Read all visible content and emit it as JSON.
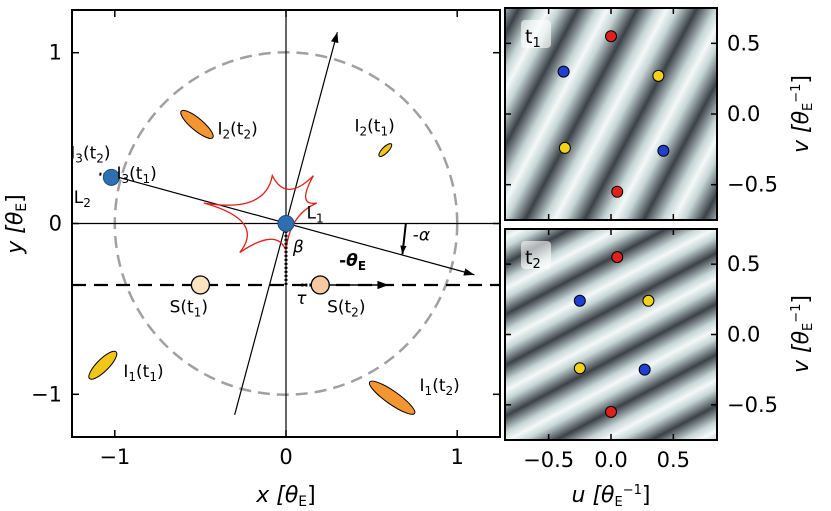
{
  "chart_data": [
    {
      "type": "scatter",
      "title": "",
      "xlabel": "x [θ_E]",
      "ylabel": "y [θ_E]",
      "xlim": [
        -1.25,
        1.25
      ],
      "ylim": [
        -1.25,
        1.25
      ],
      "xticks": [
        {
          "value": -1,
          "label": "−1"
        },
        {
          "value": 0,
          "label": "0"
        },
        {
          "value": 1,
          "label": "1"
        }
      ],
      "yticks": [
        {
          "value": -1,
          "label": "−1"
        },
        {
          "value": 0,
          "label": "0"
        },
        {
          "value": 1,
          "label": "1"
        }
      ],
      "einstein_ring": {
        "radius": 1.0
      },
      "source_track_y": -0.36,
      "lens_axis": {
        "from": [
          -1.05,
          0.29
        ],
        "to": [
          1.1,
          -0.3
        ],
        "label": "-α"
      },
      "perp_axis": {
        "from": [
          -0.3,
          -1.12
        ],
        "to": [
          0.3,
          1.12
        ]
      },
      "theta_E_arrow": {
        "from": [
          0.2,
          -0.36
        ],
        "to": [
          0.6,
          -0.36
        ],
        "label": "-θ_E"
      },
      "tau_label": "τ",
      "beta_label": "β",
      "x_label_prefix": "x [θ",
      "x_label_sub": "E",
      "x_label_suffix": "]",
      "y_label_prefix": "y [θ",
      "y_label_sub": "E",
      "y_label_suffix": "]",
      "lenses": [
        {
          "name": "L1",
          "label": "L",
          "sub": "1",
          "x": 0.0,
          "y": 0.0,
          "color": "#2f6fb0"
        },
        {
          "name": "L2",
          "label": "L",
          "sub": "2",
          "x": -1.02,
          "y": 0.27,
          "color": "#2f6fb0"
        }
      ],
      "sources": [
        {
          "name": "S(t1)",
          "label": "S(t",
          "sub": "1",
          "suffix": ")",
          "x": -0.5,
          "y": -0.36,
          "color": "#fbe3c0"
        },
        {
          "name": "S(t2)",
          "label": "S(t",
          "sub": "2",
          "suffix": ")",
          "x": 0.2,
          "y": -0.36,
          "color": "#f7c9a2"
        }
      ],
      "images": [
        {
          "name": "I1(t1)",
          "label": "I",
          "sub1": "1",
          "mid": "(t",
          "sub2": "1",
          "x": -1.07,
          "y": -0.83,
          "color": "#f2c516",
          "rx": 0.11,
          "ry": 0.035,
          "angle": 45
        },
        {
          "name": "I1(t2)",
          "label": "I",
          "sub1": "1",
          "mid": "(t",
          "sub2": "2",
          "x": 0.62,
          "y": -1.02,
          "color": "#f39632",
          "rx": 0.16,
          "ry": 0.038,
          "angle": -35
        },
        {
          "name": "I2(t1)",
          "label": "I",
          "sub1": "2",
          "mid": "(t",
          "sub2": "1",
          "x": 0.58,
          "y": 0.43,
          "color": "#f2c516",
          "rx": 0.05,
          "ry": 0.018,
          "angle": 45
        },
        {
          "name": "I2(t2)",
          "label": "I",
          "sub1": "2",
          "mid": "(t",
          "sub2": "2",
          "x": -0.52,
          "y": 0.58,
          "color": "#f39632",
          "rx": 0.12,
          "ry": 0.035,
          "angle": -40
        },
        {
          "name": "I3(t1)",
          "label": "I",
          "sub1": "3",
          "mid": "(t",
          "sub2": "1",
          "x": -1.0,
          "y": 0.27,
          "color": "#f2c516",
          "rx": 0.0,
          "ry": 0.0,
          "angle": 0
        },
        {
          "name": "I3(t2)",
          "label": "I",
          "sub1": "3",
          "mid": "(t",
          "sub2": "2",
          "x": -1.05,
          "y": 0.29,
          "color": "#f39632",
          "rx": 0.0,
          "ry": 0.0,
          "angle": 0
        }
      ]
    },
    {
      "type": "heatmap",
      "panel_tag": "t",
      "panel_tag_sub": "1",
      "xlabel": "u [θ_E^−1]",
      "ylabel": "v [θ_E^−1]",
      "xlim": [
        -0.85,
        0.85
      ],
      "ylim": [
        -0.75,
        0.75
      ],
      "xticks": [
        {
          "value": -0.5,
          "label": "−0.5"
        },
        {
          "value": 0,
          "label": "0.0"
        },
        {
          "value": 0.5,
          "label": "0.5"
        }
      ],
      "yticks": [
        {
          "value": 0.5,
          "label": "0.5"
        },
        {
          "value": 0,
          "label": "0.0"
        },
        {
          "value": -0.5,
          "label": "−0.5"
        }
      ],
      "fringe_angle": 28,
      "fringe_period": 0.42,
      "points": [
        {
          "u": 0.0,
          "v": 0.55,
          "color": "#e0201c"
        },
        {
          "u": 0.05,
          "v": -0.55,
          "color": "#e0201c"
        },
        {
          "u": -0.38,
          "v": 0.3,
          "color": "#1e3fd0"
        },
        {
          "u": 0.42,
          "v": -0.26,
          "color": "#1e3fd0"
        },
        {
          "u": 0.38,
          "v": 0.27,
          "color": "#f2d21a"
        },
        {
          "u": -0.37,
          "v": -0.24,
          "color": "#f2d21a"
        }
      ]
    },
    {
      "type": "heatmap",
      "panel_tag": "t",
      "panel_tag_sub": "2",
      "xlabel": "u [θ_E^−1]",
      "ylabel": "v [θ_E^−1]",
      "xlim": [
        -0.85,
        0.85
      ],
      "ylim": [
        -0.75,
        0.75
      ],
      "xticks": [
        {
          "value": -0.5,
          "label": "−0.5"
        },
        {
          "value": 0,
          "label": "0.0"
        },
        {
          "value": 0.5,
          "label": "0.5"
        }
      ],
      "yticks": [
        {
          "value": 0.5,
          "label": "0.5"
        },
        {
          "value": 0,
          "label": "0.0"
        },
        {
          "value": -0.5,
          "label": "−0.5"
        }
      ],
      "fringe_angle": 62,
      "fringe_period": 0.36,
      "points": [
        {
          "u": 0.05,
          "v": 0.55,
          "color": "#e0201c"
        },
        {
          "u": 0.0,
          "v": -0.55,
          "color": "#e0201c"
        },
        {
          "u": -0.25,
          "v": 0.24,
          "color": "#1e3fd0"
        },
        {
          "u": 0.27,
          "v": -0.25,
          "color": "#1e3fd0"
        },
        {
          "u": 0.3,
          "v": 0.24,
          "color": "#f2d21a"
        },
        {
          "u": -0.25,
          "v": -0.24,
          "color": "#f2d21a"
        }
      ]
    }
  ],
  "u_label_prefix": "u [θ",
  "u_label_sub": "E",
  "u_label_sup": "−1",
  "u_label_suffix": "]",
  "v_label_prefix": "v [θ",
  "v_label_sub": "E",
  "v_label_sup": "−1",
  "v_label_suffix": "]"
}
